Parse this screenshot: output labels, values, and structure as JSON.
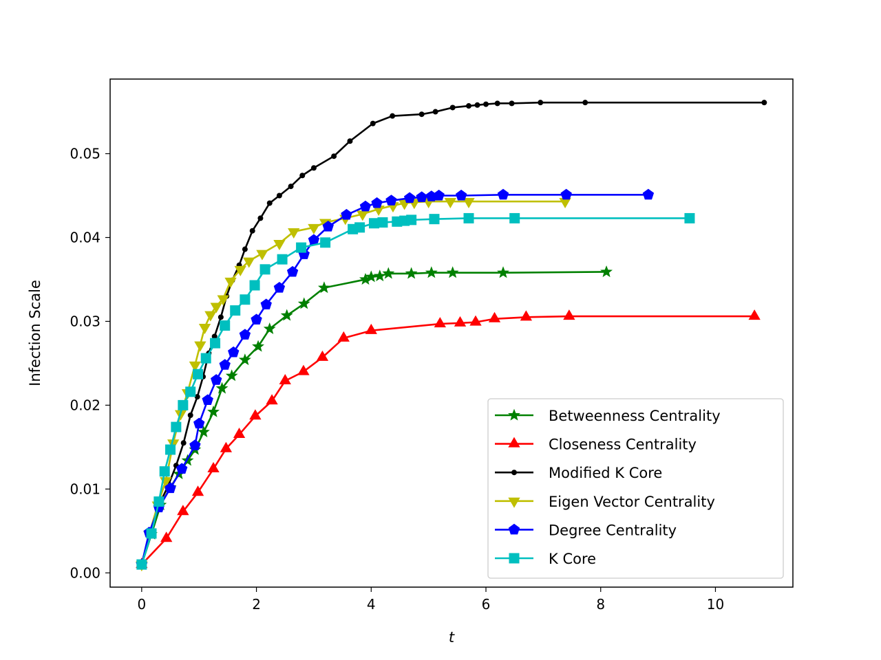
{
  "chart_data": {
    "type": "line",
    "title": "",
    "xlabel": "t",
    "ylabel": "Infection Scale",
    "xlim": [
      -0.55,
      11.35
    ],
    "ylim": [
      -0.0017,
      0.0589
    ],
    "xticks": [
      0,
      2,
      4,
      6,
      8,
      10
    ],
    "xtick_labels": [
      "0",
      "2",
      "4",
      "6",
      "8",
      "10"
    ],
    "yticks": [
      0.0,
      0.01,
      0.02,
      0.03,
      0.04,
      0.05
    ],
    "ytick_labels": [
      "0.00",
      "0.01",
      "0.02",
      "0.03",
      "0.04",
      "0.05"
    ],
    "grid": false,
    "legend_position": "lower-right",
    "series": [
      {
        "name": "Betweenness Centrality",
        "color": "#008000",
        "marker": "star",
        "x": [
          0.0,
          0.17,
          0.33,
          0.5,
          0.65,
          0.8,
          0.93,
          1.08,
          1.25,
          1.4,
          1.57,
          1.8,
          2.03,
          2.23,
          2.53,
          2.83,
          3.18,
          3.9,
          4.0,
          4.15,
          4.3,
          4.7,
          5.05,
          5.42,
          6.3,
          8.1
        ],
        "y": [
          0.001,
          0.0046,
          0.0081,
          0.0102,
          0.0118,
          0.0134,
          0.0147,
          0.0168,
          0.0192,
          0.022,
          0.0235,
          0.0254,
          0.027,
          0.0291,
          0.0307,
          0.0321,
          0.034,
          0.035,
          0.0353,
          0.0354,
          0.0357,
          0.0357,
          0.0358,
          0.0358,
          0.0358,
          0.0359
        ]
      },
      {
        "name": "Closeness Centrality",
        "color": "#ff0000",
        "marker": "triangle-up",
        "x": [
          0.0,
          0.43,
          0.72,
          0.98,
          1.25,
          1.47,
          1.7,
          1.98,
          2.27,
          2.5,
          2.82,
          3.15,
          3.52,
          4.0,
          5.2,
          5.55,
          5.82,
          6.15,
          6.7,
          7.45,
          10.68
        ],
        "y": [
          0.001,
          0.0041,
          0.0073,
          0.0096,
          0.0124,
          0.0148,
          0.0165,
          0.0187,
          0.0205,
          0.0229,
          0.024,
          0.0257,
          0.028,
          0.0289,
          0.0297,
          0.0298,
          0.0299,
          0.0303,
          0.0305,
          0.0306,
          0.0306
        ]
      },
      {
        "name": "Modified K Core",
        "color": "#000000",
        "marker": "dot",
        "x": [
          0.0,
          0.13,
          0.3,
          0.45,
          0.6,
          0.73,
          0.85,
          0.97,
          1.07,
          1.17,
          1.27,
          1.38,
          1.48,
          1.58,
          1.7,
          1.8,
          1.93,
          2.07,
          2.23,
          2.4,
          2.6,
          2.8,
          3.0,
          3.35,
          3.63,
          4.03,
          4.37,
          4.88,
          5.12,
          5.42,
          5.7,
          5.85,
          6.0,
          6.2,
          6.45,
          6.95,
          7.73,
          10.85
        ],
        "y": [
          0.001,
          0.0046,
          0.0081,
          0.0102,
          0.0128,
          0.0155,
          0.0188,
          0.021,
          0.0234,
          0.0262,
          0.0282,
          0.0305,
          0.033,
          0.0349,
          0.0367,
          0.0386,
          0.0408,
          0.0423,
          0.0441,
          0.045,
          0.0461,
          0.0474,
          0.0483,
          0.0497,
          0.0515,
          0.0536,
          0.0545,
          0.0547,
          0.055,
          0.0555,
          0.0557,
          0.0558,
          0.0559,
          0.056,
          0.056,
          0.0561,
          0.0561,
          0.0561
        ]
      },
      {
        "name": "Eigen Vector Centrality",
        "color": "#bfbf00",
        "marker": "triangle-down",
        "x": [
          0.0,
          0.13,
          0.28,
          0.42,
          0.55,
          0.68,
          0.8,
          0.93,
          1.02,
          1.1,
          1.2,
          1.3,
          1.42,
          1.55,
          1.72,
          1.87,
          2.1,
          2.4,
          2.65,
          3.0,
          3.2,
          3.55,
          3.85,
          4.13,
          4.38,
          4.58,
          4.75,
          5.0,
          5.38,
          5.7,
          7.38
        ],
        "y": [
          0.001,
          0.0046,
          0.0081,
          0.011,
          0.0155,
          0.019,
          0.0215,
          0.0248,
          0.0272,
          0.0293,
          0.0308,
          0.0318,
          0.0327,
          0.0348,
          0.0362,
          0.0372,
          0.0381,
          0.0393,
          0.0407,
          0.0412,
          0.0418,
          0.0423,
          0.0428,
          0.0434,
          0.0438,
          0.0441,
          0.0442,
          0.0443,
          0.0443,
          0.0443,
          0.0443
        ]
      },
      {
        "name": "Degree Centrality",
        "color": "#0000ff",
        "marker": "pentagon",
        "x": [
          0.0,
          0.13,
          0.3,
          0.5,
          0.7,
          0.93,
          1.0,
          1.15,
          1.3,
          1.45,
          1.6,
          1.8,
          2.0,
          2.17,
          2.4,
          2.63,
          2.83,
          3.0,
          3.25,
          3.57,
          3.9,
          4.1,
          4.35,
          4.67,
          4.88,
          5.05,
          5.18,
          5.57,
          6.3,
          7.4,
          8.83
        ],
        "y": [
          0.001,
          0.0048,
          0.0078,
          0.0101,
          0.0124,
          0.0152,
          0.0178,
          0.0206,
          0.023,
          0.0248,
          0.0263,
          0.0284,
          0.0302,
          0.032,
          0.034,
          0.0359,
          0.038,
          0.0397,
          0.0413,
          0.0427,
          0.0437,
          0.0441,
          0.0444,
          0.0447,
          0.0448,
          0.0449,
          0.045,
          0.045,
          0.0451,
          0.0451,
          0.0451
        ]
      },
      {
        "name": "K Core",
        "color": "#00bfbf",
        "marker": "square",
        "x": [
          0.0,
          0.17,
          0.3,
          0.4,
          0.5,
          0.6,
          0.72,
          0.85,
          0.98,
          1.12,
          1.28,
          1.45,
          1.63,
          1.8,
          1.97,
          2.15,
          2.45,
          2.78,
          3.2,
          3.68,
          3.8,
          4.05,
          4.2,
          4.45,
          4.58,
          4.7,
          5.1,
          5.7,
          6.5,
          9.55
        ],
        "y": [
          0.001,
          0.0047,
          0.0085,
          0.0121,
          0.0147,
          0.0174,
          0.02,
          0.0216,
          0.0237,
          0.0256,
          0.0274,
          0.0295,
          0.0313,
          0.0326,
          0.0343,
          0.0362,
          0.0374,
          0.0388,
          0.0394,
          0.041,
          0.0412,
          0.0417,
          0.0418,
          0.0419,
          0.042,
          0.0421,
          0.0422,
          0.0423,
          0.0423,
          0.0423
        ]
      }
    ]
  }
}
